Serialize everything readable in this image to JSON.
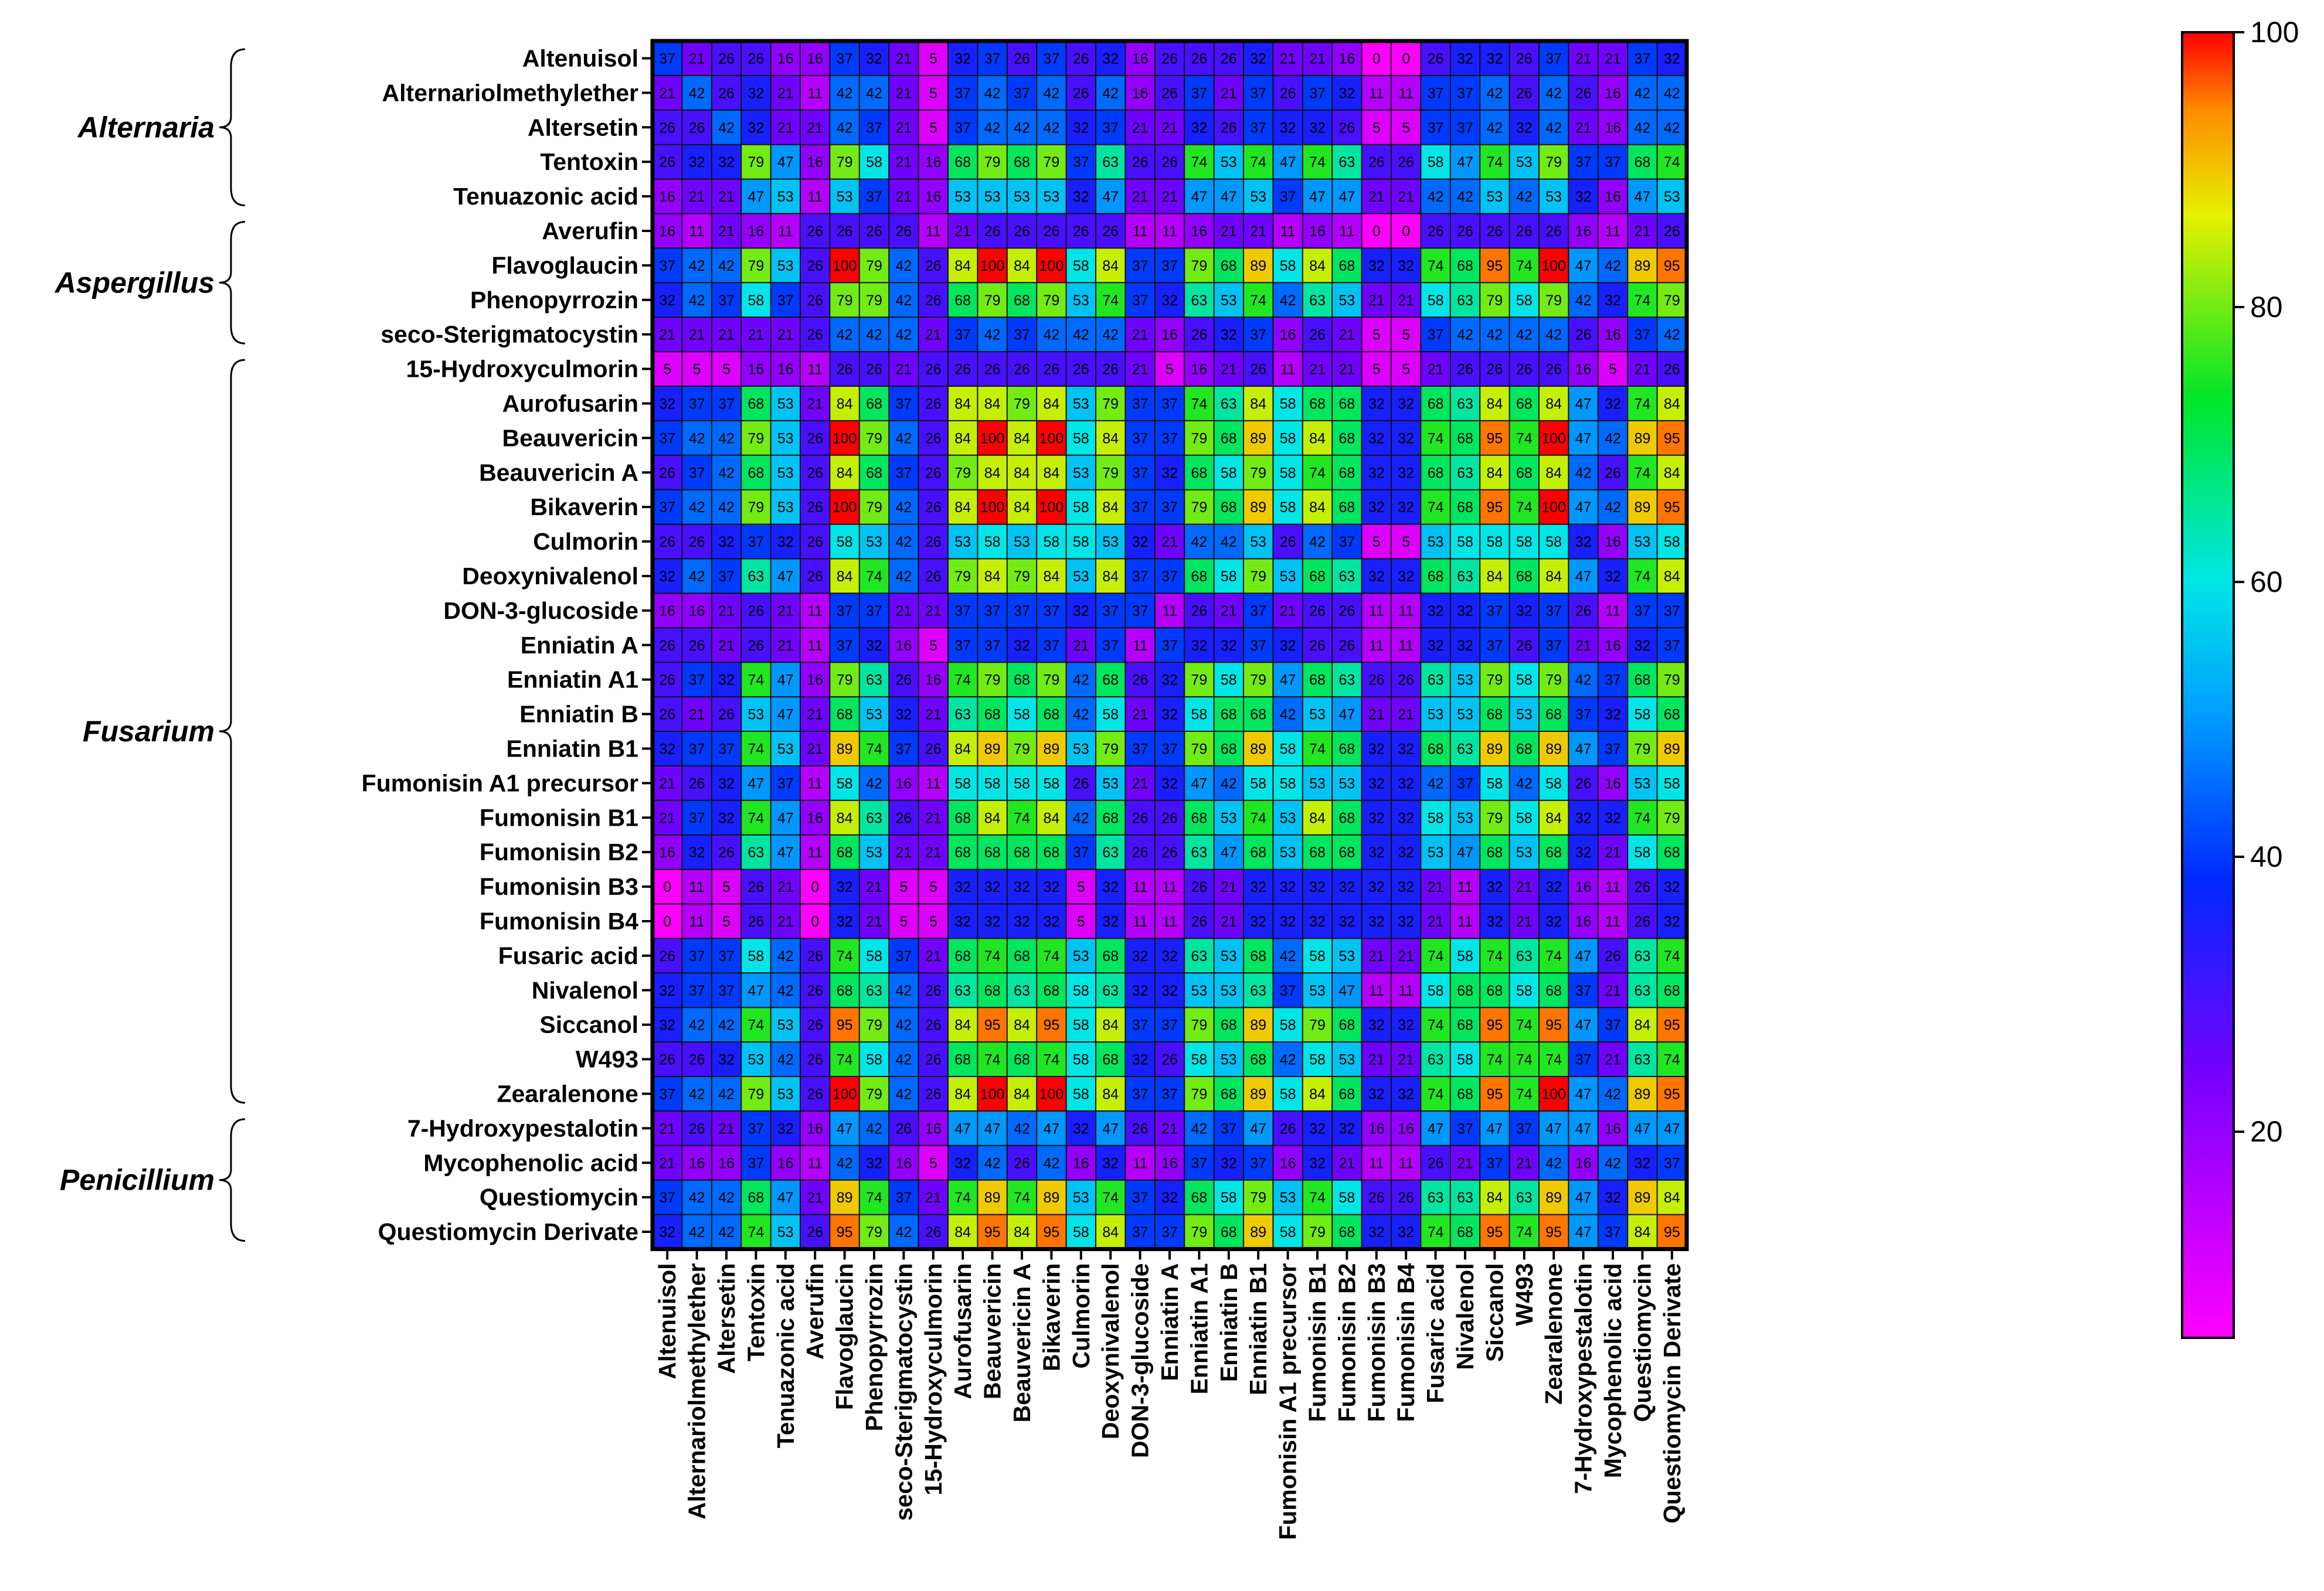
{
  "chart_data": {
    "type": "heatmap",
    "title": "",
    "xlabel": "",
    "ylabel": "",
    "value_range": [
      5,
      100
    ],
    "colorbar": {
      "ticks": [
        20,
        40,
        60,
        80,
        100
      ],
      "min": 5,
      "max": 100,
      "placement": "right"
    },
    "groups": [
      {
        "name": "Alternaria",
        "rows": [
          "Altenuisol",
          "Tenuazonic acid"
        ]
      },
      {
        "name": "Aspergillus",
        "rows": [
          "Averufin",
          "seco-Sterigmatocystin"
        ]
      },
      {
        "name": "Fusarium",
        "rows": [
          "15-Hydroxyculmorin",
          "Zearalenone"
        ]
      },
      {
        "name": "Penicillium",
        "rows": [
          "7-Hydroxypestalotin",
          "Questiomycin Derivate"
        ]
      }
    ],
    "labels": [
      "Altenuisol",
      "Alternariolmethylether",
      "Altersetin",
      "Tentoxin",
      "Tenuazonic acid",
      "Averufin",
      "Flavoglaucin",
      "Phenopyrrozin",
      "seco-Sterigmatocystin",
      "15-Hydroxyculmorin",
      "Aurofusarin",
      "Beauvericin",
      "Beauvericin A",
      "Bikaverin",
      "Culmorin",
      "Deoxynivalenol",
      "DON-3-glucoside",
      "Enniatin A",
      "Enniatin A1",
      "Enniatin B",
      "Enniatin B1",
      "Fumonisin A1 precursor",
      "Fumonisin B1",
      "Fumonisin B2",
      "Fumonisin B3",
      "Fumonisin B4",
      "Fusaric acid",
      "Nivalenol",
      "Siccanol",
      "W493",
      "Zearalenone",
      "7-Hydroxypestalotin",
      "Mycophenolic acid",
      "Questiomycin",
      "Questiomycin Derivate"
    ],
    "values": [
      [
        37,
        21,
        26,
        26,
        16,
        16,
        37,
        32,
        21,
        5,
        32,
        37,
        26,
        37,
        26,
        32,
        16,
        26,
        26,
        26,
        32,
        21,
        21,
        16,
        0,
        0,
        26,
        32,
        32,
        26,
        37,
        21,
        21,
        37,
        32
      ],
      [
        21,
        42,
        26,
        32,
        21,
        11,
        42,
        42,
        21,
        5,
        37,
        42,
        37,
        42,
        26,
        42,
        16,
        26,
        37,
        21,
        37,
        26,
        37,
        32,
        11,
        11,
        37,
        37,
        42,
        26,
        42,
        26,
        16,
        42,
        42
      ],
      [
        26,
        26,
        42,
        32,
        21,
        21,
        42,
        37,
        21,
        5,
        37,
        42,
        42,
        42,
        32,
        37,
        21,
        21,
        32,
        26,
        37,
        32,
        32,
        26,
        5,
        5,
        37,
        37,
        42,
        32,
        42,
        21,
        16,
        42,
        42
      ],
      [
        26,
        32,
        32,
        79,
        47,
        16,
        79,
        58,
        21,
        16,
        68,
        79,
        68,
        79,
        37,
        63,
        26,
        26,
        74,
        53,
        74,
        47,
        74,
        63,
        26,
        26,
        58,
        47,
        74,
        53,
        79,
        37,
        37,
        68,
        74
      ],
      [
        16,
        21,
        21,
        47,
        53,
        11,
        53,
        37,
        21,
        16,
        53,
        53,
        53,
        53,
        32,
        47,
        21,
        21,
        47,
        47,
        53,
        37,
        47,
        47,
        21,
        21,
        42,
        42,
        53,
        42,
        53,
        32,
        16,
        47,
        53
      ],
      [
        16,
        11,
        21,
        16,
        11,
        26,
        26,
        26,
        26,
        11,
        21,
        26,
        26,
        26,
        26,
        26,
        11,
        11,
        16,
        21,
        21,
        11,
        16,
        11,
        0,
        0,
        26,
        26,
        26,
        26,
        26,
        16,
        11,
        21,
        26
      ],
      [
        37,
        42,
        42,
        79,
        53,
        26,
        100,
        79,
        42,
        26,
        84,
        100,
        84,
        100,
        58,
        84,
        37,
        37,
        79,
        68,
        89,
        58,
        84,
        68,
        32,
        32,
        74,
        68,
        95,
        74,
        100,
        47,
        42,
        89,
        95
      ],
      [
        32,
        42,
        37,
        58,
        37,
        26,
        79,
        79,
        42,
        26,
        68,
        79,
        68,
        79,
        53,
        74,
        37,
        32,
        63,
        53,
        74,
        42,
        63,
        53,
        21,
        21,
        58,
        63,
        79,
        58,
        79,
        42,
        32,
        74,
        79
      ],
      [
        21,
        21,
        21,
        21,
        21,
        26,
        42,
        42,
        42,
        21,
        37,
        42,
        37,
        42,
        42,
        42,
        21,
        16,
        26,
        32,
        37,
        16,
        26,
        21,
        5,
        5,
        37,
        42,
        42,
        42,
        42,
        26,
        16,
        37,
        42
      ],
      [
        5,
        5,
        5,
        16,
        16,
        11,
        26,
        26,
        21,
        26,
        26,
        26,
        26,
        26,
        26,
        26,
        21,
        5,
        16,
        21,
        26,
        11,
        21,
        21,
        5,
        5,
        21,
        26,
        26,
        26,
        26,
        16,
        5,
        21,
        26
      ],
      [
        32,
        37,
        37,
        68,
        53,
        21,
        84,
        68,
        37,
        26,
        84,
        84,
        79,
        84,
        53,
        79,
        37,
        37,
        74,
        63,
        84,
        58,
        68,
        68,
        32,
        32,
        68,
        63,
        84,
        68,
        84,
        47,
        32,
        74,
        84
      ],
      [
        37,
        42,
        42,
        79,
        53,
        26,
        100,
        79,
        42,
        26,
        84,
        100,
        84,
        100,
        58,
        84,
        37,
        37,
        79,
        68,
        89,
        58,
        84,
        68,
        32,
        32,
        74,
        68,
        95,
        74,
        100,
        47,
        42,
        89,
        95
      ],
      [
        26,
        37,
        42,
        68,
        53,
        26,
        84,
        68,
        37,
        26,
        79,
        84,
        84,
        84,
        53,
        79,
        37,
        32,
        68,
        58,
        79,
        58,
        74,
        68,
        32,
        32,
        68,
        63,
        84,
        68,
        84,
        42,
        26,
        74,
        84
      ],
      [
        37,
        42,
        42,
        79,
        53,
        26,
        100,
        79,
        42,
        26,
        84,
        100,
        84,
        100,
        58,
        84,
        37,
        37,
        79,
        68,
        89,
        58,
        84,
        68,
        32,
        32,
        74,
        68,
        95,
        74,
        100,
        47,
        42,
        89,
        95
      ],
      [
        26,
        26,
        32,
        37,
        32,
        26,
        58,
        53,
        42,
        26,
        53,
        58,
        53,
        58,
        58,
        53,
        32,
        21,
        42,
        42,
        53,
        26,
        42,
        37,
        5,
        5,
        53,
        58,
        58,
        58,
        58,
        32,
        16,
        53,
        58
      ],
      [
        32,
        42,
        37,
        63,
        47,
        26,
        84,
        74,
        42,
        26,
        79,
        84,
        79,
        84,
        53,
        84,
        37,
        37,
        68,
        58,
        79,
        53,
        68,
        63,
        32,
        32,
        68,
        63,
        84,
        68,
        84,
        47,
        32,
        74,
        84
      ],
      [
        16,
        16,
        21,
        26,
        21,
        11,
        37,
        37,
        21,
        21,
        37,
        37,
        37,
        37,
        32,
        37,
        37,
        11,
        26,
        21,
        37,
        21,
        26,
        26,
        11,
        11,
        32,
        32,
        37,
        32,
        37,
        26,
        11,
        37,
        37
      ],
      [
        26,
        26,
        21,
        26,
        21,
        11,
        37,
        32,
        16,
        5,
        37,
        37,
        32,
        37,
        21,
        37,
        11,
        37,
        32,
        32,
        37,
        32,
        26,
        26,
        11,
        11,
        32,
        32,
        37,
        26,
        37,
        21,
        16,
        32,
        37
      ],
      [
        26,
        37,
        32,
        74,
        47,
        16,
        79,
        63,
        26,
        16,
        74,
        79,
        68,
        79,
        42,
        68,
        26,
        32,
        79,
        58,
        79,
        47,
        68,
        63,
        26,
        26,
        63,
        53,
        79,
        58,
        79,
        42,
        37,
        68,
        79
      ],
      [
        26,
        21,
        26,
        53,
        47,
        21,
        68,
        53,
        32,
        21,
        63,
        68,
        58,
        68,
        42,
        58,
        21,
        32,
        58,
        68,
        68,
        42,
        53,
        47,
        21,
        21,
        53,
        53,
        68,
        53,
        68,
        37,
        32,
        58,
        68
      ],
      [
        32,
        37,
        37,
        74,
        53,
        21,
        89,
        74,
        37,
        26,
        84,
        89,
        79,
        89,
        53,
        79,
        37,
        37,
        79,
        68,
        89,
        58,
        74,
        68,
        32,
        32,
        68,
        63,
        89,
        68,
        89,
        47,
        37,
        79,
        89
      ],
      [
        21,
        26,
        32,
        47,
        37,
        11,
        58,
        42,
        16,
        11,
        58,
        58,
        58,
        58,
        26,
        53,
        21,
        32,
        47,
        42,
        58,
        58,
        53,
        53,
        32,
        32,
        42,
        37,
        58,
        42,
        58,
        26,
        16,
        53,
        58
      ],
      [
        21,
        37,
        32,
        74,
        47,
        16,
        84,
        63,
        26,
        21,
        68,
        84,
        74,
        84,
        42,
        68,
        26,
        26,
        68,
        53,
        74,
        53,
        84,
        68,
        32,
        32,
        58,
        53,
        79,
        58,
        84,
        32,
        32,
        74,
        79
      ],
      [
        16,
        32,
        26,
        63,
        47,
        11,
        68,
        53,
        21,
        21,
        68,
        68,
        68,
        68,
        37,
        63,
        26,
        26,
        63,
        47,
        68,
        53,
        68,
        68,
        32,
        32,
        53,
        47,
        68,
        53,
        68,
        32,
        21,
        58,
        68
      ],
      [
        0,
        11,
        5,
        26,
        21,
        0,
        32,
        21,
        5,
        5,
        32,
        32,
        32,
        32,
        5,
        32,
        11,
        11,
        26,
        21,
        32,
        32,
        32,
        32,
        32,
        32,
        21,
        11,
        32,
        21,
        32,
        16,
        11,
        26,
        32
      ],
      [
        0,
        11,
        5,
        26,
        21,
        0,
        32,
        21,
        5,
        5,
        32,
        32,
        32,
        32,
        5,
        32,
        11,
        11,
        26,
        21,
        32,
        32,
        32,
        32,
        32,
        32,
        21,
        11,
        32,
        21,
        32,
        16,
        11,
        26,
        32
      ],
      [
        26,
        37,
        37,
        58,
        42,
        26,
        74,
        58,
        37,
        21,
        68,
        74,
        68,
        74,
        53,
        68,
        32,
        32,
        63,
        53,
        68,
        42,
        58,
        53,
        21,
        21,
        74,
        58,
        74,
        63,
        74,
        47,
        26,
        63,
        74
      ],
      [
        32,
        37,
        37,
        47,
        42,
        26,
        68,
        63,
        42,
        26,
        63,
        68,
        63,
        68,
        58,
        63,
        32,
        32,
        53,
        53,
        63,
        37,
        53,
        47,
        11,
        11,
        58,
        68,
        68,
        58,
        68,
        37,
        21,
        63,
        68
      ],
      [
        32,
        42,
        42,
        74,
        53,
        26,
        95,
        79,
        42,
        26,
        84,
        95,
        84,
        95,
        58,
        84,
        37,
        37,
        79,
        68,
        89,
        58,
        79,
        68,
        32,
        32,
        74,
        68,
        95,
        74,
        95,
        47,
        37,
        84,
        95
      ],
      [
        26,
        26,
        32,
        53,
        42,
        26,
        74,
        58,
        42,
        26,
        68,
        74,
        68,
        74,
        58,
        68,
        32,
        26,
        58,
        53,
        68,
        42,
        58,
        53,
        21,
        21,
        63,
        58,
        74,
        74,
        74,
        37,
        21,
        63,
        74
      ],
      [
        37,
        42,
        42,
        79,
        53,
        26,
        100,
        79,
        42,
        26,
        84,
        100,
        84,
        100,
        58,
        84,
        37,
        37,
        79,
        68,
        89,
        58,
        84,
        68,
        32,
        32,
        74,
        68,
        95,
        74,
        100,
        47,
        42,
        89,
        95
      ],
      [
        21,
        26,
        21,
        37,
        32,
        16,
        47,
        42,
        26,
        16,
        47,
        47,
        42,
        47,
        32,
        47,
        26,
        21,
        42,
        37,
        47,
        26,
        32,
        32,
        16,
        16,
        47,
        37,
        47,
        37,
        47,
        47,
        16,
        47,
        47
      ],
      [
        21,
        16,
        16,
        37,
        16,
        11,
        42,
        32,
        16,
        5,
        32,
        42,
        26,
        42,
        16,
        32,
        11,
        16,
        37,
        32,
        37,
        16,
        32,
        21,
        11,
        11,
        26,
        21,
        37,
        21,
        42,
        16,
        42,
        32,
        37
      ],
      [
        37,
        42,
        42,
        68,
        47,
        21,
        89,
        74,
        37,
        21,
        74,
        89,
        74,
        89,
        53,
        74,
        37,
        32,
        68,
        58,
        79,
        53,
        74,
        58,
        26,
        26,
        63,
        63,
        84,
        63,
        89,
        47,
        32,
        89,
        84
      ],
      [
        32,
        42,
        42,
        74,
        53,
        26,
        95,
        79,
        42,
        26,
        84,
        95,
        84,
        95,
        58,
        84,
        37,
        37,
        79,
        68,
        89,
        58,
        79,
        68,
        32,
        32,
        74,
        68,
        95,
        74,
        95,
        47,
        37,
        84,
        95
      ]
    ]
  }
}
